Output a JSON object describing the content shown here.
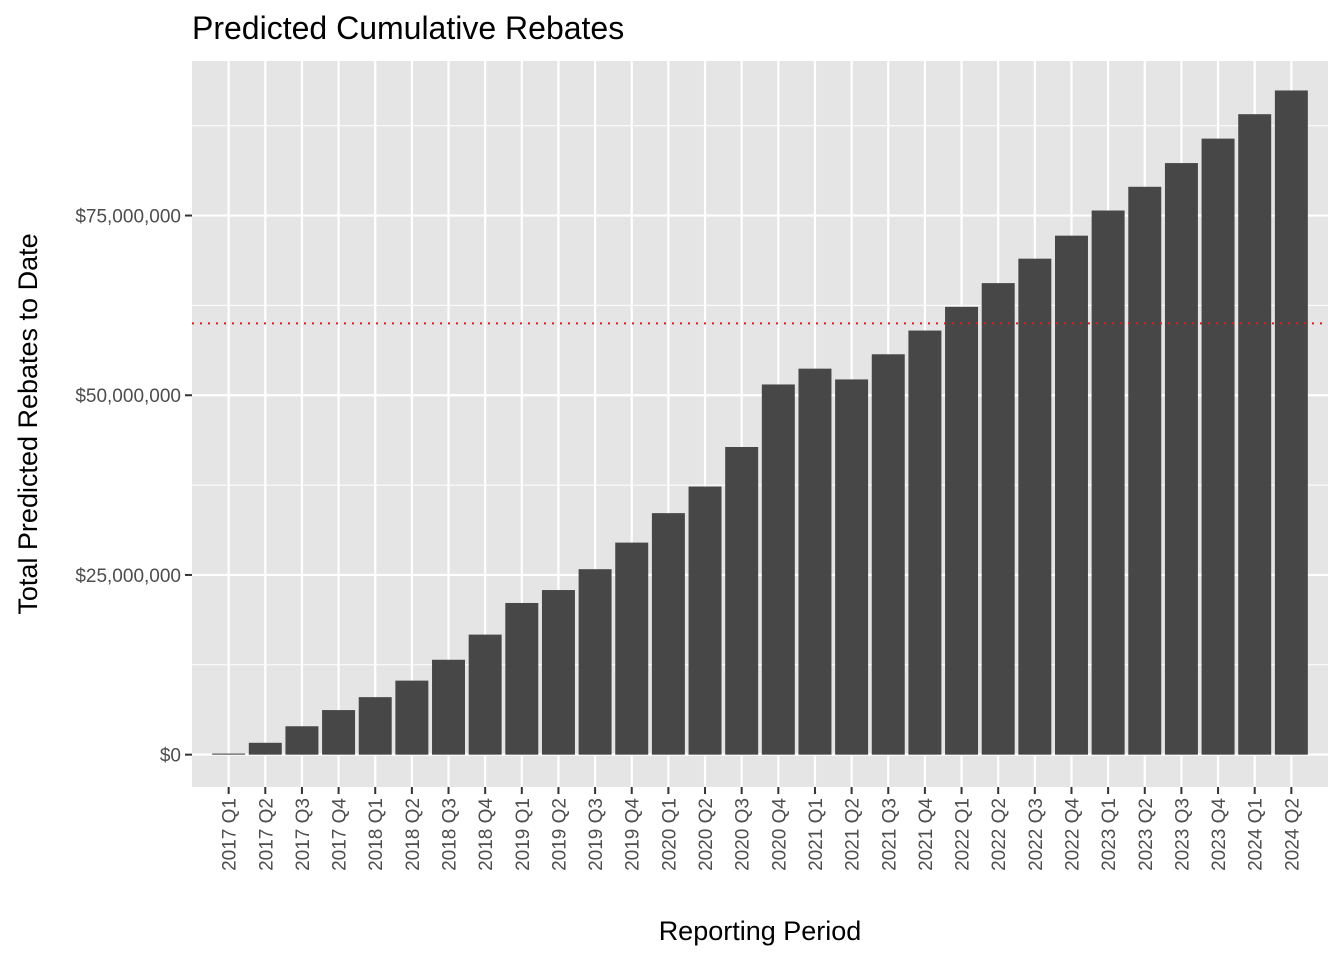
{
  "chart_data": {
    "type": "bar",
    "title": "Predicted Cumulative Rebates",
    "xlabel": "Reporting Period",
    "ylabel": "Total Predicted Rebates to Date",
    "categories": [
      "2017 Q1",
      "2017 Q2",
      "2017 Q3",
      "2017 Q4",
      "2018 Q1",
      "2018 Q2",
      "2018 Q3",
      "2018 Q4",
      "2019 Q1",
      "2019 Q2",
      "2019 Q3",
      "2019 Q4",
      "2020 Q1",
      "2020 Q2",
      "2020 Q3",
      "2020 Q4",
      "2021 Q1",
      "2021 Q2",
      "2021 Q3",
      "2021 Q4",
      "2022 Q1",
      "2022 Q2",
      "2022 Q3",
      "2022 Q4",
      "2023 Q1",
      "2023 Q2",
      "2023 Q3",
      "2023 Q4",
      "2024 Q1",
      "2024 Q2"
    ],
    "values": [
      150000,
      1650000,
      3950000,
      6200000,
      8000000,
      10300000,
      13200000,
      16700000,
      21100000,
      22900000,
      25800000,
      29500000,
      33600000,
      37300000,
      42800000,
      51500000,
      53700000,
      52200000,
      55700000,
      59000000,
      62300000,
      65600000,
      69000000,
      72200000,
      75700000,
      79000000,
      82300000,
      85700000,
      89100000,
      92400000
    ],
    "ylim": [
      -4500000,
      96500000
    ],
    "y_ticks": [
      0,
      25000000,
      50000000,
      75000000
    ],
    "y_tick_labels": [
      "$0",
      "$25,000,000",
      "$50,000,000",
      "$75,000,000"
    ],
    "reference_line": {
      "value": 60000000,
      "style": "dotted",
      "color": "#e31a1c"
    },
    "grid": true,
    "legend": "none",
    "colors": {
      "bar": "#474747",
      "panel_background": "#e5e5e5",
      "grid_major": "#ffffff",
      "tick_label": "#4d4d4d",
      "tick_mark": "#333333"
    }
  }
}
